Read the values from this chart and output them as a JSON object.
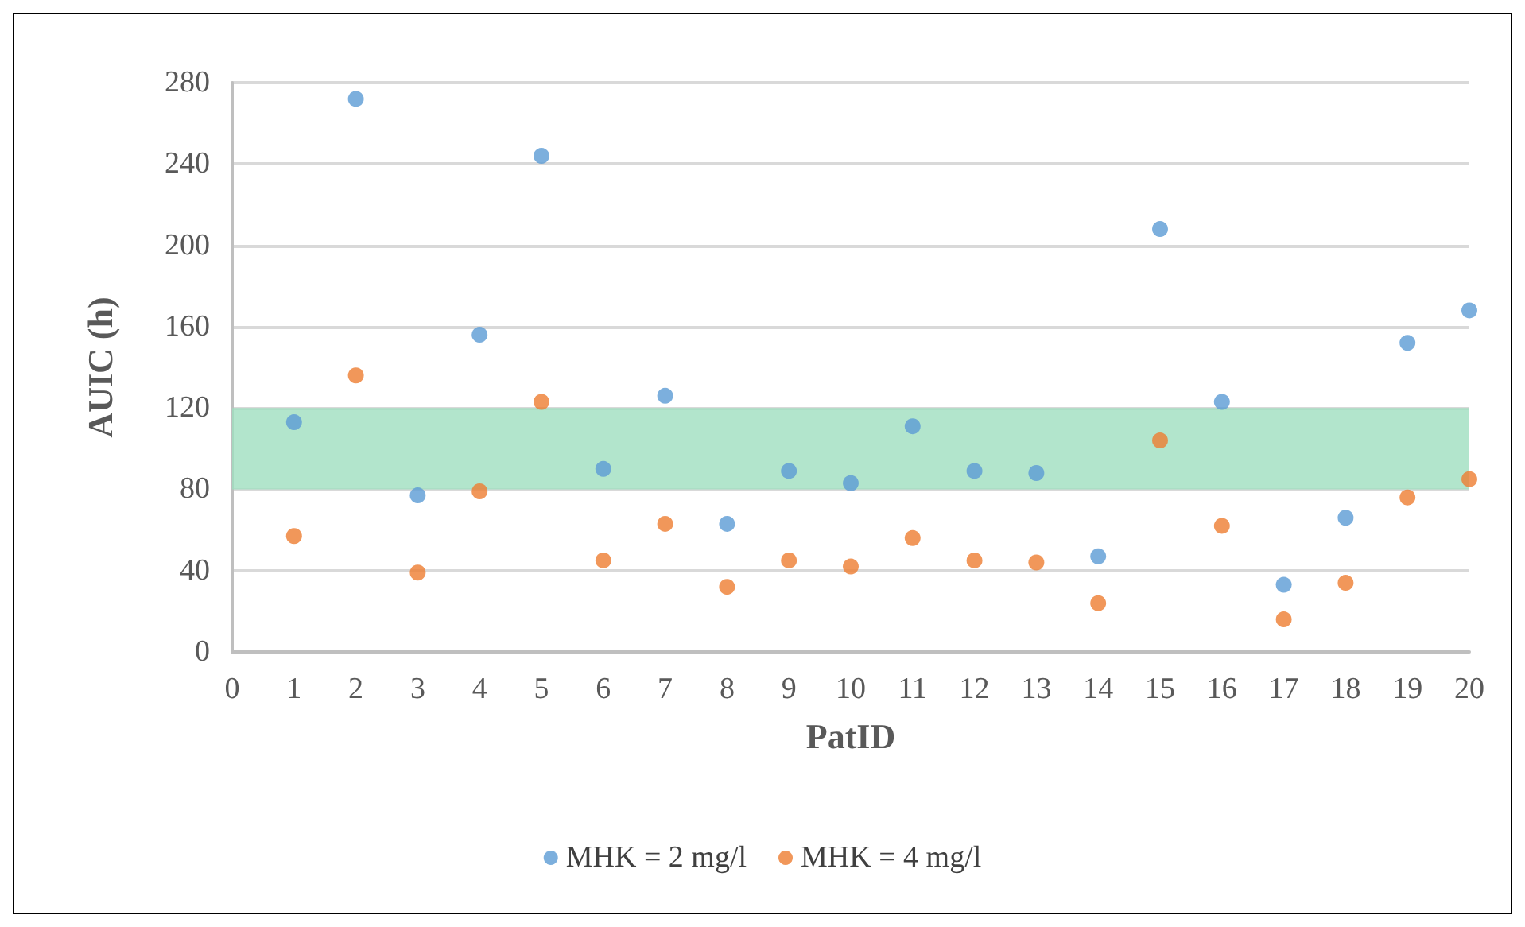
{
  "chart_data": {
    "type": "scatter",
    "xlabel": "PatID",
    "ylabel": "AUIC (h)",
    "x": [
      1,
      2,
      3,
      4,
      5,
      6,
      7,
      8,
      9,
      10,
      11,
      12,
      13,
      14,
      15,
      16,
      17,
      18,
      19,
      20
    ],
    "series": [
      {
        "name": "MHK = 2 mg/l",
        "color": "#5b9bd5",
        "values": [
          113,
          272,
          77,
          156,
          244,
          90,
          126,
          63,
          89,
          83,
          111,
          89,
          88,
          47,
          208,
          123,
          33,
          66,
          152,
          168
        ]
      },
      {
        "name": "MHK = 4 mg/l",
        "color": "#ed7d31",
        "values": [
          57,
          136,
          39,
          79,
          123,
          45,
          63,
          32,
          45,
          42,
          56,
          45,
          44,
          24,
          104,
          62,
          16,
          34,
          76,
          85
        ]
      }
    ],
    "bands": [
      {
        "axis": "y",
        "from": 80,
        "to": 120,
        "color": "#9fdfbf"
      }
    ],
    "xlim": [
      0,
      20
    ],
    "xticks": [
      0,
      1,
      2,
      3,
      4,
      5,
      6,
      7,
      8,
      9,
      10,
      11,
      12,
      13,
      14,
      15,
      16,
      17,
      18,
      19,
      20
    ],
    "ylim": [
      0,
      280
    ],
    "yticks": [
      0,
      40,
      80,
      120,
      160,
      200,
      240,
      280
    ],
    "grid": "y",
    "legend": "bottom",
    "marker": "circle"
  }
}
